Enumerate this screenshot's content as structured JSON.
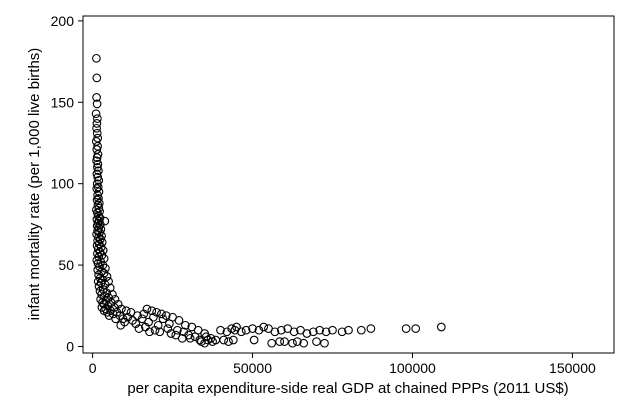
{
  "chart_data": {
    "type": "scatter",
    "title": "",
    "xlabel": "per capita expenditure-side real GDP at chained PPPs (2011 US$)",
    "ylabel": "infant mortality rate (per 1,000 live births)",
    "xlim": [
      -3000,
      163000
    ],
    "ylim": [
      -4,
      203
    ],
    "xticks": [
      0,
      50000,
      100000,
      150000
    ],
    "xtick_labels": [
      "0",
      "50000",
      "100000",
      "150000"
    ],
    "yticks": [
      0,
      50,
      100,
      150,
      200
    ],
    "ytick_labels": [
      "0",
      "50",
      "100",
      "150",
      "200"
    ],
    "grid": false,
    "marker": "hollow-circle",
    "series": [
      {
        "points": [
          [
            1200,
            177
          ],
          [
            1300,
            165
          ],
          [
            1250,
            153
          ],
          [
            1400,
            149
          ],
          [
            1100,
            143
          ],
          [
            1500,
            140
          ],
          [
            1350,
            137
          ],
          [
            1250,
            134
          ],
          [
            1450,
            131
          ],
          [
            1600,
            128
          ],
          [
            1150,
            126
          ],
          [
            1550,
            123
          ],
          [
            1300,
            121
          ],
          [
            1700,
            118
          ],
          [
            1400,
            116
          ],
          [
            1250,
            114
          ],
          [
            1650,
            112
          ],
          [
            1500,
            110
          ],
          [
            1800,
            108
          ],
          [
            1350,
            106
          ],
          [
            1600,
            104
          ],
          [
            1900,
            102
          ],
          [
            1450,
            100
          ],
          [
            1750,
            98
          ],
          [
            1300,
            97
          ],
          [
            2000,
            95
          ],
          [
            1550,
            93
          ],
          [
            1850,
            91
          ],
          [
            1400,
            90
          ],
          [
            2100,
            88
          ],
          [
            1650,
            87
          ],
          [
            1950,
            85
          ],
          [
            1200,
            84
          ],
          [
            2200,
            83
          ],
          [
            1500,
            82
          ],
          [
            1800,
            80
          ],
          [
            2300,
            79
          ],
          [
            1350,
            78
          ],
          [
            2050,
            77
          ],
          [
            3800,
            77
          ],
          [
            1700,
            76
          ],
          [
            2400,
            75
          ],
          [
            1450,
            74
          ],
          [
            1950,
            73
          ],
          [
            2600,
            72
          ],
          [
            1600,
            71
          ],
          [
            2200,
            70
          ],
          [
            1250,
            69
          ],
          [
            2800,
            68
          ],
          [
            1850,
            67
          ],
          [
            2450,
            66
          ],
          [
            1550,
            65
          ],
          [
            3000,
            64
          ],
          [
            2050,
            63
          ],
          [
            1400,
            62
          ],
          [
            2700,
            61
          ],
          [
            1750,
            60
          ],
          [
            3300,
            59
          ],
          [
            2300,
            58
          ],
          [
            1500,
            57
          ],
          [
            2900,
            56
          ],
          [
            1950,
            55
          ],
          [
            3600,
            54
          ],
          [
            1300,
            53
          ],
          [
            2550,
            52
          ],
          [
            1700,
            51
          ],
          [
            3200,
            50
          ],
          [
            2150,
            49
          ],
          [
            4000,
            48
          ],
          [
            1600,
            47
          ],
          [
            2800,
            46
          ],
          [
            3600,
            45
          ],
          [
            1900,
            44
          ],
          [
            4500,
            43
          ],
          [
            2400,
            42
          ],
          [
            3100,
            41
          ],
          [
            1750,
            40
          ],
          [
            5000,
            40
          ],
          [
            2650,
            39
          ],
          [
            3900,
            38
          ],
          [
            2000,
            37
          ],
          [
            5500,
            36
          ],
          [
            3300,
            35
          ],
          [
            2300,
            34
          ],
          [
            4400,
            33
          ],
          [
            6200,
            32
          ],
          [
            2800,
            32
          ],
          [
            3700,
            31
          ],
          [
            5000,
            30
          ],
          [
            2500,
            29
          ],
          [
            7000,
            29
          ],
          [
            4200,
            28
          ],
          [
            3100,
            27
          ],
          [
            5800,
            27
          ],
          [
            8000,
            26
          ],
          [
            3500,
            26
          ],
          [
            4800,
            25
          ],
          [
            6800,
            24
          ],
          [
            2900,
            24
          ],
          [
            9000,
            23
          ],
          [
            4100,
            23
          ],
          [
            5600,
            22
          ],
          [
            10500,
            22
          ],
          [
            3600,
            22
          ],
          [
            7600,
            21
          ],
          [
            12000,
            21
          ],
          [
            4600,
            21
          ],
          [
            6400,
            20
          ],
          [
            17000,
            23
          ],
          [
            18500,
            22
          ],
          [
            20000,
            21
          ],
          [
            21500,
            20
          ],
          [
            23000,
            19
          ],
          [
            16000,
            20
          ],
          [
            8500,
            19
          ],
          [
            14000,
            19
          ],
          [
            5200,
            19
          ],
          [
            11000,
            18
          ],
          [
            19000,
            18
          ],
          [
            9500,
            17
          ],
          [
            25000,
            18
          ],
          [
            15500,
            17
          ],
          [
            7200,
            17
          ],
          [
            12500,
            16
          ],
          [
            22000,
            17
          ],
          [
            27000,
            16
          ],
          [
            10000,
            15
          ],
          [
            17500,
            15
          ],
          [
            13500,
            14
          ],
          [
            24000,
            14
          ],
          [
            20500,
            13
          ],
          [
            29000,
            13
          ],
          [
            16500,
            12
          ],
          [
            8800,
            13
          ],
          [
            31000,
            12
          ],
          [
            23500,
            11
          ],
          [
            19500,
            10
          ],
          [
            26500,
            10
          ],
          [
            14500,
            11
          ],
          [
            33000,
            10
          ],
          [
            21000,
            9
          ],
          [
            28500,
            9
          ],
          [
            17800,
            9
          ],
          [
            35000,
            8
          ],
          [
            24500,
            8
          ],
          [
            30000,
            7
          ],
          [
            26000,
            7
          ],
          [
            32000,
            6
          ],
          [
            35500,
            6
          ],
          [
            28000,
            5
          ],
          [
            37000,
            5
          ],
          [
            30500,
            5
          ],
          [
            33500,
            4
          ],
          [
            36000,
            4
          ],
          [
            34000,
            3
          ],
          [
            38500,
            4
          ],
          [
            35000,
            2
          ],
          [
            37500,
            3
          ],
          [
            40000,
            10
          ],
          [
            42000,
            9
          ],
          [
            43500,
            11
          ],
          [
            44500,
            10
          ],
          [
            45000,
            12
          ],
          [
            46500,
            9
          ],
          [
            48000,
            10
          ],
          [
            50000,
            11
          ],
          [
            52000,
            10
          ],
          [
            53500,
            12
          ],
          [
            55000,
            11
          ],
          [
            57000,
            9
          ],
          [
            59000,
            10
          ],
          [
            61000,
            11
          ],
          [
            63000,
            9
          ],
          [
            65000,
            10
          ],
          [
            67000,
            8
          ],
          [
            69000,
            9
          ],
          [
            71000,
            10
          ],
          [
            73000,
            9
          ],
          [
            75000,
            10
          ],
          [
            78000,
            9
          ],
          [
            80000,
            10
          ],
          [
            84000,
            10
          ],
          [
            87000,
            11
          ],
          [
            98000,
            11
          ],
          [
            101000,
            11
          ],
          [
            109000,
            12
          ],
          [
            41000,
            4
          ],
          [
            42500,
            3
          ],
          [
            44000,
            4
          ],
          [
            50500,
            4
          ],
          [
            56000,
            2
          ],
          [
            58500,
            3
          ],
          [
            60000,
            3
          ],
          [
            62500,
            2
          ],
          [
            64000,
            3
          ],
          [
            66000,
            2
          ],
          [
            70000,
            3
          ],
          [
            72500,
            2
          ]
        ]
      }
    ]
  }
}
